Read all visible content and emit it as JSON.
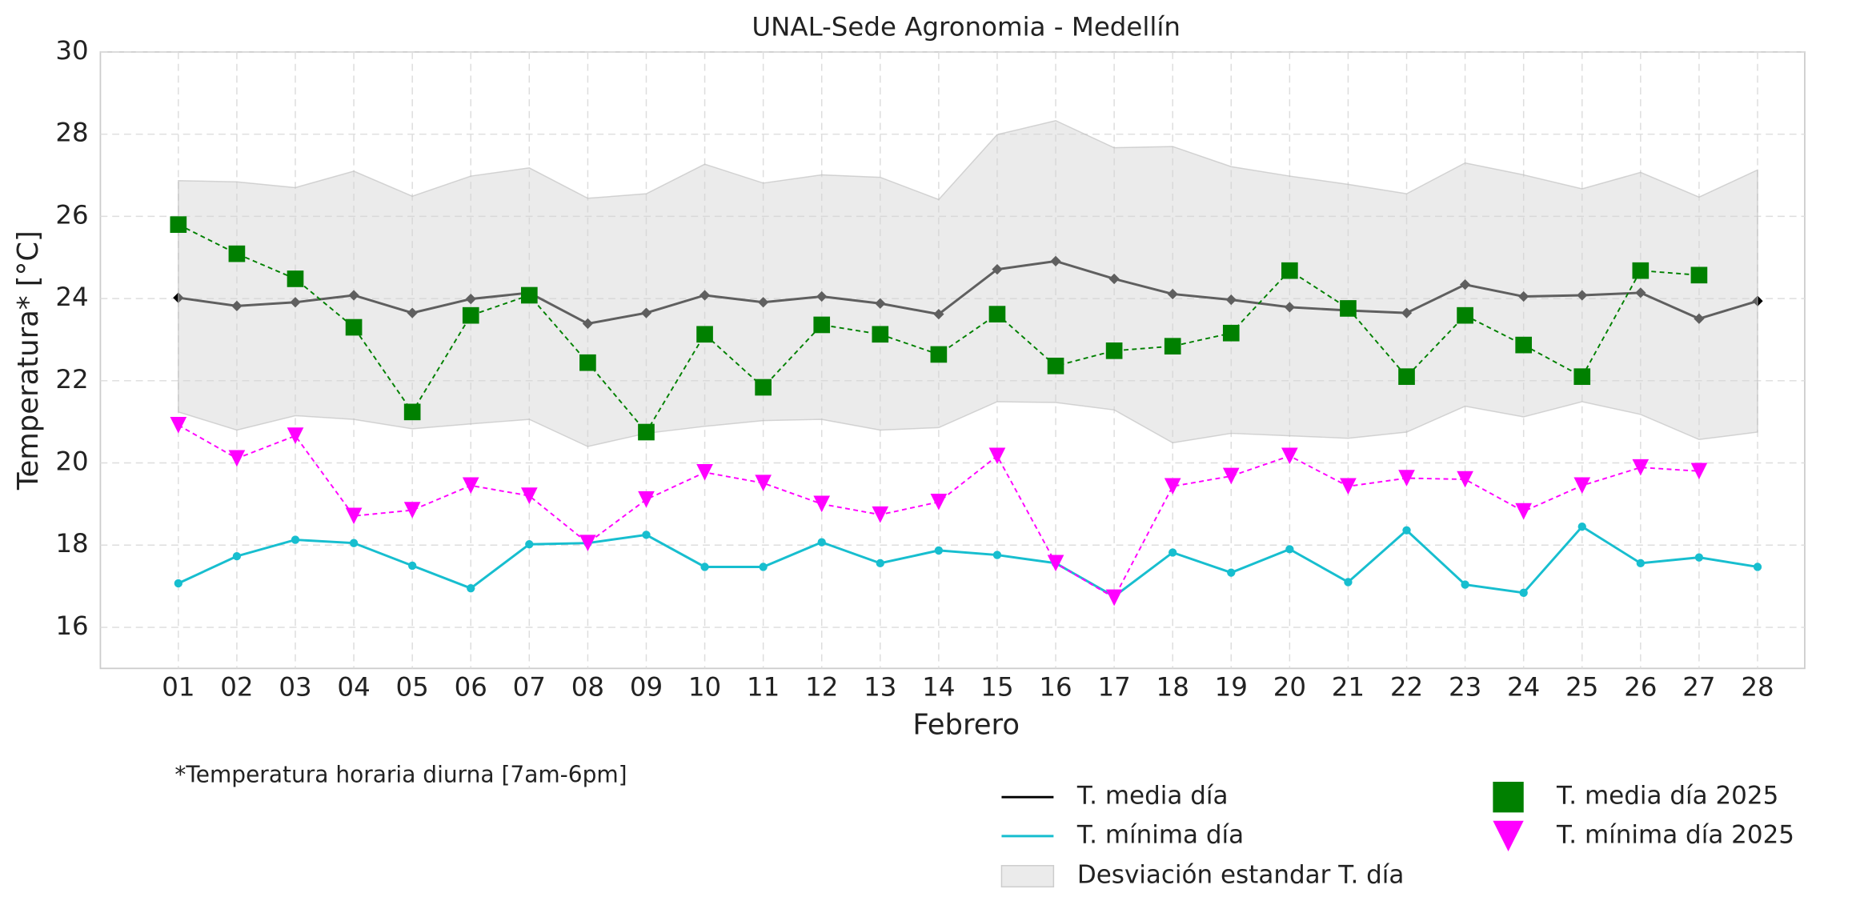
{
  "chart_data": {
    "type": "line",
    "title": "UNAL-Sede Agronomia - Medellín",
    "x_label": "Febrero",
    "y_label": "Temperatura* [°C]",
    "annotation": "*Temperatura horaria diurna [7am-6pm]",
    "categories": [
      "01",
      "02",
      "03",
      "04",
      "05",
      "06",
      "07",
      "08",
      "09",
      "10",
      "11",
      "12",
      "13",
      "14",
      "15",
      "16",
      "17",
      "18",
      "19",
      "20",
      "21",
      "22",
      "23",
      "24",
      "25",
      "26",
      "27",
      "28"
    ],
    "ylim": [
      15,
      30
    ],
    "yticks": [
      16,
      18,
      20,
      22,
      24,
      26,
      28,
      30
    ],
    "grid": true,
    "series": [
      {
        "name": "T. media día",
        "color": "#000000",
        "marker": "diamond",
        "linestyle": "solid",
        "values": [
          24.02,
          23.82,
          23.91,
          24.08,
          23.65,
          23.99,
          24.14,
          23.39,
          23.65,
          24.08,
          23.91,
          24.05,
          23.88,
          23.62,
          24.71,
          24.91,
          24.48,
          24.11,
          23.97,
          23.79,
          23.71,
          23.65,
          24.34,
          24.05,
          24.08,
          24.14,
          23.51,
          23.94
        ]
      },
      {
        "name": "T. mínima día",
        "color": "#17becf",
        "marker": "circle",
        "linestyle": "solid",
        "values": [
          17.07,
          17.73,
          18.13,
          18.05,
          17.5,
          16.95,
          18.02,
          18.05,
          18.25,
          17.47,
          17.47,
          18.07,
          17.56,
          17.87,
          17.76,
          17.56,
          16.75,
          17.82,
          17.33,
          17.9,
          17.1,
          18.36,
          17.04,
          16.84,
          18.45,
          17.56,
          17.7,
          17.47
        ]
      },
      {
        "name": "Desviación estandar T. día",
        "color": "#d3d3d3",
        "type": "band",
        "upper": [
          26.87,
          26.84,
          26.7,
          27.1,
          26.49,
          26.98,
          27.18,
          26.44,
          26.55,
          27.27,
          26.81,
          27.01,
          26.95,
          26.41,
          27.99,
          28.33,
          27.67,
          27.7,
          27.21,
          26.98,
          26.78,
          26.55,
          27.3,
          27.01,
          26.67,
          27.07,
          26.47,
          27.13
        ],
        "lower": [
          21.24,
          20.8,
          21.15,
          21.06,
          20.83,
          20.95,
          21.06,
          20.4,
          20.72,
          20.89,
          21.03,
          21.06,
          20.8,
          20.86,
          21.49,
          21.47,
          21.29,
          20.49,
          20.72,
          20.66,
          20.6,
          20.75,
          21.38,
          21.12,
          21.49,
          21.18,
          20.57,
          20.75
        ]
      },
      {
        "name": "T. media día 2025",
        "color": "#008000",
        "marker": "square",
        "linestyle": "dashed",
        "values": [
          25.8,
          25.09,
          24.48,
          23.3,
          21.24,
          23.59,
          24.08,
          22.44,
          20.75,
          23.13,
          21.84,
          23.36,
          23.13,
          22.64,
          23.62,
          22.36,
          22.73,
          22.84,
          23.16,
          24.68,
          23.76,
          22.1,
          23.59,
          22.87,
          22.1,
          24.68,
          24.57,
          null
        ]
      },
      {
        "name": "T. mínima día 2025",
        "color": "#ff00ff",
        "marker": "triangle",
        "linestyle": "dashed",
        "values": [
          20.92,
          20.11,
          20.66,
          18.71,
          18.85,
          19.45,
          19.2,
          18.05,
          19.11,
          19.77,
          19.51,
          19.0,
          18.74,
          19.05,
          20.17,
          17.56,
          16.72,
          19.43,
          19.68,
          20.17,
          19.43,
          19.63,
          19.6,
          18.82,
          19.45,
          19.89,
          19.8,
          null
        ]
      }
    ]
  }
}
